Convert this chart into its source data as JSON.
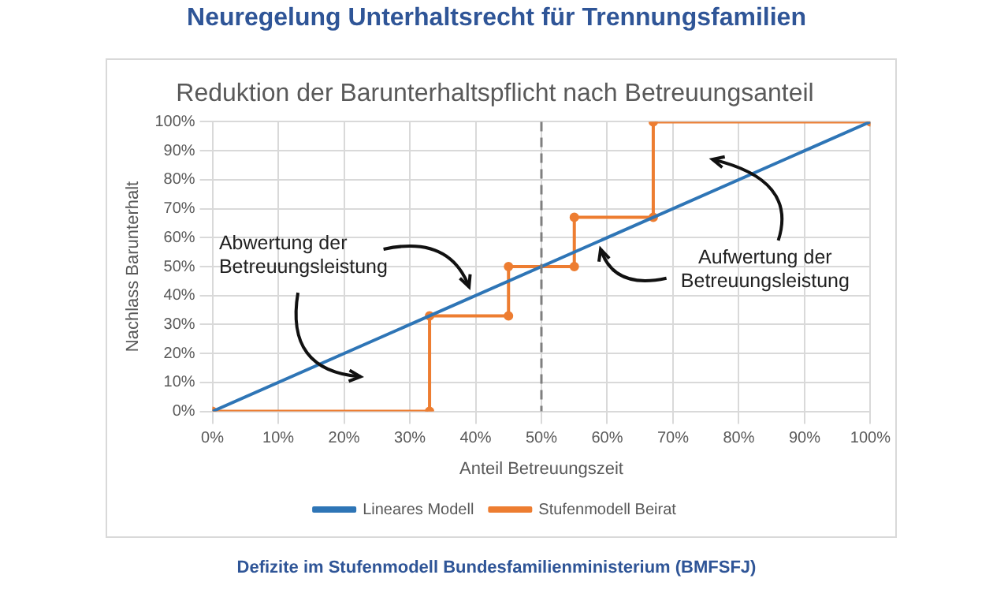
{
  "chart_data": {
    "type": "line",
    "title": "Neuregelung Unterhaltsrecht für Trennungsfamilien",
    "subtitle": "Reduktion der Barunterhaltspflicht nach Betreuungsanteil",
    "xlabel": "Anteil Betreuungszeit",
    "ylabel": "Nachlass Barunterhalt",
    "series": [
      {
        "name": "Lineares Modell",
        "color": "#2e75b6",
        "marker": "none",
        "x": [
          0,
          100
        ],
        "values": [
          0,
          100
        ]
      },
      {
        "name": "Stufenmodell Beirat",
        "color": "#ed7d31",
        "marker": "circle",
        "x": [
          0,
          33,
          33,
          45,
          45,
          55,
          55,
          67,
          67,
          100
        ],
        "values": [
          0,
          0,
          33,
          33,
          50,
          50,
          67,
          67,
          100,
          100
        ]
      }
    ],
    "xlim": [
      0,
      100
    ],
    "ylim": [
      0,
      100
    ],
    "xticks": [
      {
        "value": 0,
        "label": "0%"
      },
      {
        "value": 10,
        "label": "10%"
      },
      {
        "value": 20,
        "label": "20%"
      },
      {
        "value": 30,
        "label": "30%"
      },
      {
        "value": 40,
        "label": "40%"
      },
      {
        "value": 50,
        "label": "50%"
      },
      {
        "value": 60,
        "label": "60%"
      },
      {
        "value": 70,
        "label": "70%"
      },
      {
        "value": 80,
        "label": "80%"
      },
      {
        "value": 90,
        "label": "90%"
      },
      {
        "value": 100,
        "label": "100%"
      }
    ],
    "yticks": [
      {
        "value": 0,
        "label": "0%"
      },
      {
        "value": 10,
        "label": "10%"
      },
      {
        "value": 20,
        "label": "20%"
      },
      {
        "value": 30,
        "label": "30%"
      },
      {
        "value": 40,
        "label": "40%"
      },
      {
        "value": 50,
        "label": "50%"
      },
      {
        "value": 60,
        "label": "60%"
      },
      {
        "value": 70,
        "label": "70%"
      },
      {
        "value": 80,
        "label": "80%"
      },
      {
        "value": 90,
        "label": "90%"
      },
      {
        "value": 100,
        "label": "100%"
      }
    ],
    "grid": true,
    "legend": "bottom",
    "ref_lines": [
      {
        "axis": "x",
        "value": 50,
        "color": "#7f7f7f",
        "line_style": "dashed"
      }
    ],
    "annotations": [
      "Abwertung der Betreuungsleistung",
      "Aufwertung der Betreuungsleistung",
      "Defizite im Stufenmodell Bundesfamilienministerium (BMFSFJ)"
    ]
  }
}
